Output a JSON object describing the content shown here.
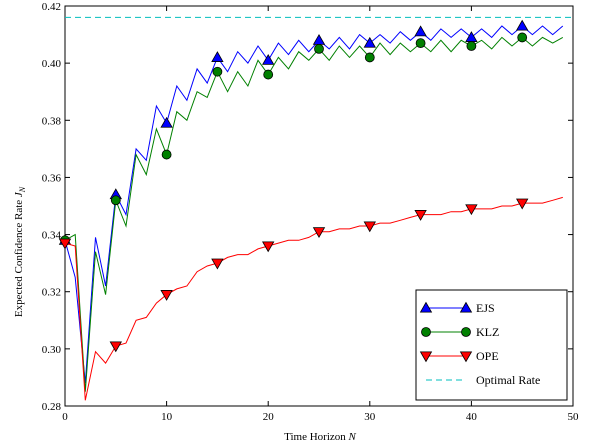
{
  "chart_data": {
    "type": "line",
    "xlabel": "Time Horizon N",
    "ylabel": "Expected Confidence Rate J_N",
    "xlim": [
      0,
      50
    ],
    "ylim": [
      0.28,
      0.42
    ],
    "x_ticks": [
      0,
      10,
      20,
      30,
      40,
      50
    ],
    "y_ticks": [
      0.28,
      0.3,
      0.32,
      0.34,
      0.36,
      0.38,
      0.4,
      0.42
    ],
    "x_tick_labels": [
      "0",
      "10",
      "20",
      "30",
      "40",
      "50"
    ],
    "y_tick_labels": [
      "0.28",
      "0.30",
      "0.32",
      "0.34",
      "0.36",
      "0.38",
      "0.40",
      "0.42"
    ],
    "grid": false,
    "legend_position": "bottom-right",
    "x": [
      0,
      1,
      2,
      3,
      4,
      5,
      6,
      7,
      8,
      9,
      10,
      11,
      12,
      13,
      14,
      15,
      16,
      17,
      18,
      19,
      20,
      21,
      22,
      23,
      24,
      25,
      26,
      27,
      28,
      29,
      30,
      31,
      32,
      33,
      34,
      35,
      36,
      37,
      38,
      39,
      40,
      41,
      42,
      43,
      44,
      45,
      46,
      47,
      48,
      49
    ],
    "series": [
      {
        "name": "EJS",
        "color": "#0000ff",
        "marker": "triangle-up",
        "values": [
          0.338,
          0.325,
          0.288,
          0.339,
          0.322,
          0.354,
          0.347,
          0.37,
          0.366,
          0.385,
          0.379,
          0.392,
          0.387,
          0.398,
          0.393,
          0.402,
          0.397,
          0.404,
          0.4,
          0.406,
          0.401,
          0.407,
          0.403,
          0.408,
          0.404,
          0.408,
          0.405,
          0.409,
          0.405,
          0.41,
          0.407,
          0.41,
          0.407,
          0.411,
          0.408,
          0.411,
          0.408,
          0.412,
          0.409,
          0.412,
          0.409,
          0.412,
          0.409,
          0.413,
          0.41,
          0.413,
          0.41,
          0.413,
          0.41,
          0.413
        ]
      },
      {
        "name": "KLZ",
        "color": "#008000",
        "marker": "circle",
        "values": [
          0.338,
          0.34,
          0.285,
          0.334,
          0.319,
          0.352,
          0.343,
          0.368,
          0.361,
          0.377,
          0.368,
          0.383,
          0.38,
          0.39,
          0.388,
          0.397,
          0.39,
          0.397,
          0.392,
          0.401,
          0.396,
          0.402,
          0.398,
          0.404,
          0.401,
          0.405,
          0.401,
          0.406,
          0.402,
          0.406,
          0.402,
          0.407,
          0.403,
          0.407,
          0.404,
          0.407,
          0.404,
          0.408,
          0.404,
          0.408,
          0.406,
          0.408,
          0.405,
          0.409,
          0.406,
          0.409,
          0.406,
          0.409,
          0.407,
          0.409
        ]
      },
      {
        "name": "OPE",
        "color": "#ff0000",
        "marker": "triangle-down",
        "values": [
          0.337,
          0.336,
          0.282,
          0.299,
          0.295,
          0.301,
          0.302,
          0.31,
          0.311,
          0.316,
          0.319,
          0.321,
          0.322,
          0.327,
          0.329,
          0.33,
          0.332,
          0.333,
          0.333,
          0.335,
          0.336,
          0.337,
          0.338,
          0.338,
          0.339,
          0.341,
          0.341,
          0.342,
          0.342,
          0.343,
          0.343,
          0.344,
          0.344,
          0.345,
          0.346,
          0.347,
          0.347,
          0.347,
          0.348,
          0.348,
          0.349,
          0.349,
          0.349,
          0.35,
          0.35,
          0.351,
          0.351,
          0.351,
          0.352,
          0.353
        ]
      },
      {
        "name": "Optimal Rate",
        "color": "#00bfbf",
        "style": "dashed",
        "constant": 0.416
      }
    ],
    "marker_every": 5
  }
}
